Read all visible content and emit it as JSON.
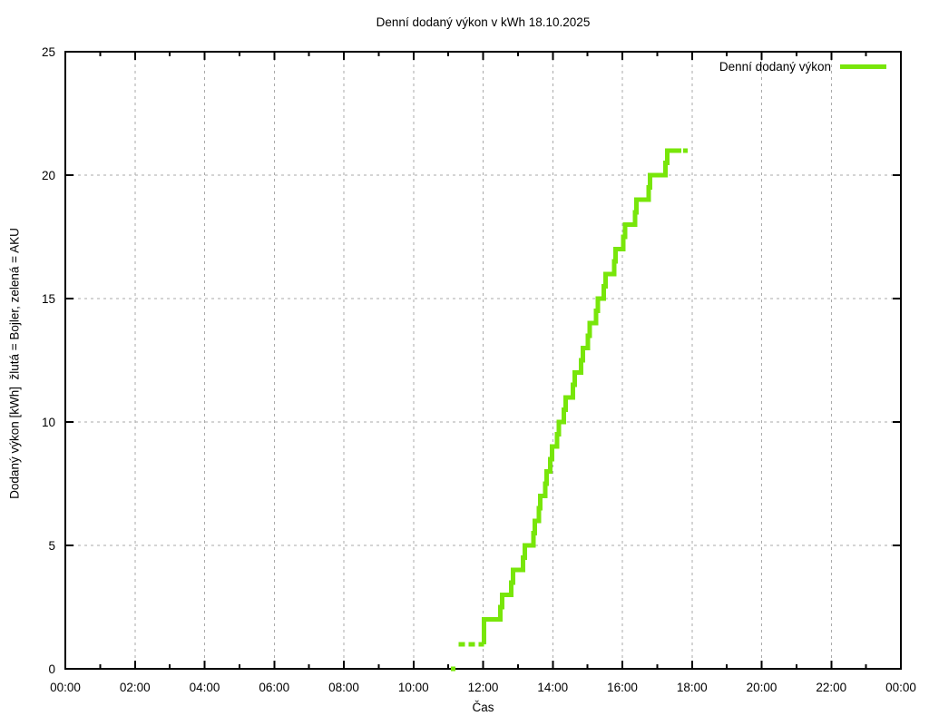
{
  "page": {
    "title": "Denní dodaný výkon v kWh 18.10.2025"
  },
  "legend": {
    "label": "Denní dodaný výkon"
  },
  "axes": {
    "x_label": "Čas",
    "y_label": "Dodaný výkon [kWh]  žlutá = Bojler, zelená = AKU",
    "x_tick_labels": [
      "00:00",
      "02:00",
      "04:00",
      "06:00",
      "08:00",
      "10:00",
      "12:00",
      "14:00",
      "16:00",
      "18:00",
      "20:00",
      "22:00",
      "00:00"
    ],
    "y_tick_labels": [
      "0",
      "5",
      "10",
      "15",
      "20",
      "25"
    ]
  },
  "colors": {
    "series_green": "#78E60A",
    "grid": "#AAAAAA",
    "axis": "#000000",
    "background": "#FFFFFF"
  },
  "chart_data": {
    "type": "line",
    "style": "steps-post",
    "title": "Denní dodaný výkon v kWh 18.10.2025",
    "xlabel": "Čas",
    "ylabel": "Dodaný výkon [kWh]  žlutá = Bojler, zelená = AKU",
    "x_unit": "hours",
    "x_range_hours": [
      0,
      24
    ],
    "x_tick_interval_hours": 2,
    "x_minor_tick_interval_hours": 1,
    "ylim": [
      0,
      25
    ],
    "y_tick_interval": 5,
    "grid": true,
    "grid_style": "dashed",
    "legend_position": "top-right-inside",
    "series": [
      {
        "name": "Denní dodaný výkon",
        "color": "#78E60A",
        "line_width": 5,
        "final_value_kwh": 21,
        "start_mark": {
          "time": [
            11.08,
            11.2
          ],
          "value": 0
        },
        "dashed_segment": {
          "time": [
            11.3,
            12.02
          ],
          "value": 1
        },
        "steps": [
          [
            12.02,
            1
          ],
          [
            12.02,
            2
          ],
          [
            12.5,
            2.5
          ],
          [
            12.55,
            3
          ],
          [
            12.81,
            3.5
          ],
          [
            12.86,
            4
          ],
          [
            13.15,
            4.5
          ],
          [
            13.2,
            5
          ],
          [
            13.44,
            5.5
          ],
          [
            13.49,
            6
          ],
          [
            13.6,
            6.5
          ],
          [
            13.64,
            7
          ],
          [
            13.78,
            7.5
          ],
          [
            13.83,
            8
          ],
          [
            13.93,
            8.5
          ],
          [
            13.98,
            9
          ],
          [
            14.12,
            9.5
          ],
          [
            14.17,
            10
          ],
          [
            14.32,
            10.5
          ],
          [
            14.37,
            11
          ],
          [
            14.58,
            11.5
          ],
          [
            14.63,
            12
          ],
          [
            14.82,
            12.5
          ],
          [
            14.87,
            13
          ],
          [
            15.01,
            13.5
          ],
          [
            15.06,
            14
          ],
          [
            15.24,
            14.5
          ],
          [
            15.29,
            15
          ],
          [
            15.47,
            15.5
          ],
          [
            15.52,
            16
          ],
          [
            15.76,
            16.5
          ],
          [
            15.81,
            17
          ],
          [
            16.03,
            17.5
          ],
          [
            16.08,
            18
          ],
          [
            16.36,
            18.5
          ],
          [
            16.41,
            19
          ],
          [
            16.75,
            19.5
          ],
          [
            16.8,
            20
          ],
          [
            17.24,
            20.5
          ],
          [
            17.29,
            21
          ]
        ],
        "solid_end_time": 17.69,
        "trailing_dash": {
          "time": [
            17.74,
            17.87
          ],
          "value": 21
        }
      }
    ]
  }
}
